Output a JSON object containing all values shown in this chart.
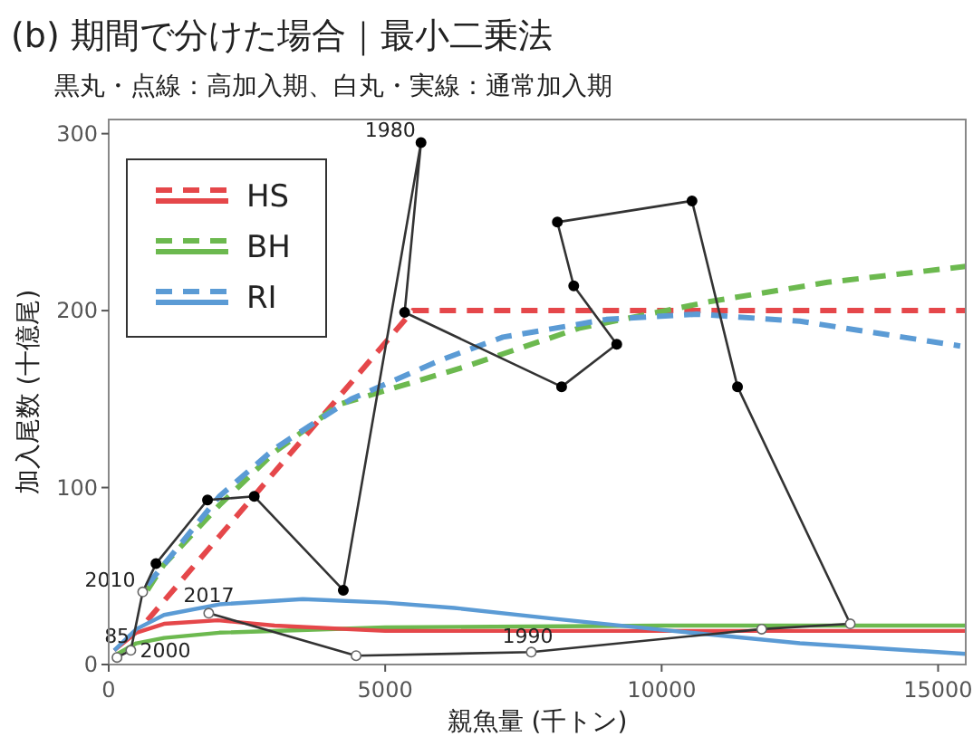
{
  "chart_data": {
    "type": "line",
    "title": "(b) 期間で分けた場合｜最小二乗法",
    "subtitle": "黒丸・点線：高加入期、白丸・実線：通常加入期",
    "xlabel": "親魚量 (千トン)",
    "ylabel": "加入尾数 (十億尾)",
    "xlim": [
      0,
      15500
    ],
    "ylim": [
      0,
      308
    ],
    "xticks": [
      0,
      5000,
      10000,
      15000
    ],
    "yticks": [
      0,
      100,
      200,
      300
    ],
    "grid": false,
    "legend": "top left",
    "series": [
      {
        "name": "HS",
        "color": "#e5474a",
        "line_style": "dashed",
        "marker": "none",
        "x": [
          700,
          5500,
          15500
        ],
        "values": [
          25,
          200,
          200
        ]
      },
      {
        "name": "BH",
        "color": "#6cb94f",
        "line_style": "dashed",
        "marker": "none",
        "x": [
          700,
          987,
          2000,
          3000,
          4167,
          6414,
          8500,
          10855,
          13000,
          15500
        ],
        "values": [
          42,
          56,
          90,
          120,
          147,
          168,
          190,
          205,
          216,
          225
        ]
      },
      {
        "name": "RI",
        "color": "#5b9bd5",
        "line_style": "dashed",
        "marker": "none",
        "x": [
          700,
          2000,
          3000,
          4385,
          6000,
          7128,
          9000,
          10636,
          12500,
          15400
        ],
        "values": [
          45,
          95,
          122,
          150,
          172,
          185,
          195,
          198,
          194,
          180
        ]
      },
      {
        "color": "#6cb94f",
        "line_style": "solid",
        "marker": "none",
        "x": [
          100,
          500,
          1000,
          2000,
          5000,
          10000,
          15500
        ],
        "values": [
          5,
          12,
          15,
          18,
          21,
          22,
          22
        ]
      },
      {
        "color": "#e5474a",
        "line_style": "solid",
        "marker": "none",
        "x": [
          100,
          500,
          1000,
          1974,
          3000,
          5000,
          15500
        ],
        "values": [
          8,
          18,
          23,
          25,
          22,
          19,
          19
        ]
      },
      {
        "color": "#5b9bd5",
        "line_style": "solid",
        "marker": "none",
        "x": [
          100,
          500,
          1000,
          2000,
          3509,
          5000,
          6250,
          8000,
          10197,
          12500,
          15500
        ],
        "values": [
          8,
          20,
          28,
          34,
          37,
          35,
          32,
          26,
          19,
          12,
          6
        ]
      },
      {
        "color": "#333333",
        "line_style": "solid",
        "marker": "circle",
        "x": [
          150,
          400,
          615,
          855,
          1787,
          2632,
          4243,
          5648,
          5352,
          8191,
          9188,
          8410,
          8114,
          10549,
          11372,
          13411,
          11809,
          7642,
          4474,
          1809
        ],
        "values": [
          4,
          8,
          41,
          57,
          93,
          95,
          42,
          295,
          199,
          157,
          181,
          214,
          250,
          262,
          157,
          23,
          20,
          7,
          5,
          29
        ],
        "colors": [
          "#ffffff",
          "#ffffff",
          "#ffffff",
          "#000000",
          "#000000",
          "#000000",
          "#000000",
          "#000000",
          "#000000",
          "#000000",
          "#000000",
          "#000000",
          "#000000",
          "#000000",
          "#000000",
          "#ffffff",
          "#ffffff",
          "#ffffff",
          "#ffffff",
          "#ffffff"
        ]
      }
    ],
    "annotations": [
      {
        "text": "1980",
        "x": 5648,
        "y": 295
      },
      {
        "text": "1990",
        "x": 7642,
        "y": 7
      },
      {
        "text": "2000",
        "x": 400,
        "y": 8
      },
      {
        "text": "2010",
        "x": 615,
        "y": 41
      },
      {
        "text": "2017",
        "x": 1809,
        "y": 29
      },
      {
        "text": "85",
        "x": 150,
        "y": 4
      }
    ]
  }
}
